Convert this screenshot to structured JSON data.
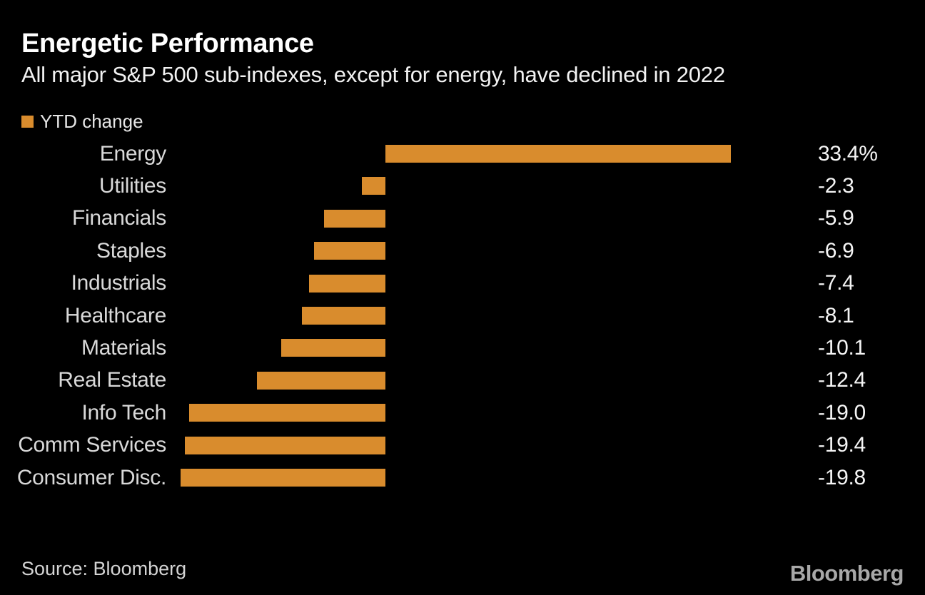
{
  "page": {
    "background_color": "#000000"
  },
  "header": {
    "title": "Energetic Performance",
    "subtitle": "All major S&P 500 sub-indexes, except for energy, have declined in 2022"
  },
  "legend": {
    "label": "YTD change",
    "swatch_color": "#d98c2d"
  },
  "chart_data": {
    "type": "bar",
    "orientation": "horizontal",
    "title": "Energetic Performance",
    "subtitle": "All major S&P 500 sub-indexes, except for energy, have declined in 2022",
    "series_name": "YTD change",
    "categories": [
      "Energy",
      "Utilities",
      "Financials",
      "Staples",
      "Industrials",
      "Healthcare",
      "Materials",
      "Real Estate",
      "Info Tech",
      "Comm Services",
      "Consumer Disc."
    ],
    "values": [
      33.4,
      -2.3,
      -5.9,
      -6.9,
      -7.4,
      -8.1,
      -10.1,
      -12.4,
      -19.0,
      -19.4,
      -19.8
    ],
    "value_labels": [
      "33.4%",
      "-2.3",
      "-5.9",
      "-6.9",
      "-7.4",
      "-8.1",
      "-10.1",
      "-12.4",
      "-19.0",
      "-19.4",
      "-19.8"
    ],
    "unit": "percent",
    "bar_color": "#d98c2d",
    "xlim": [
      -19.8,
      33.4
    ],
    "grid": false,
    "axis_ticks_visible": false,
    "legend_position": "top-left",
    "value_label_position": "right-column"
  },
  "footer": {
    "source": "Source: Bloomberg",
    "brand": "Bloomberg"
  }
}
